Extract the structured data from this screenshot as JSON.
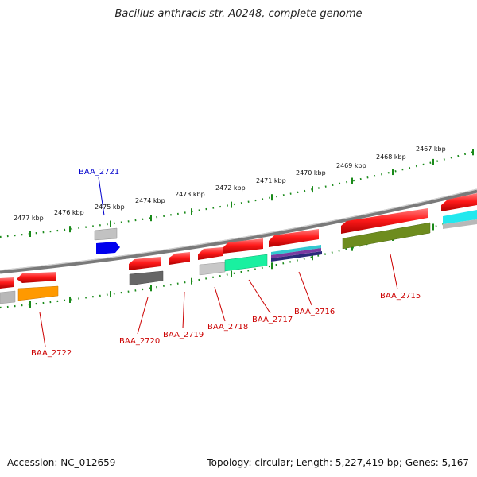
{
  "title": "Bacillus anthracis str. A0248, complete genome",
  "footer": {
    "accession": "Accession: NC_012659",
    "summary": "Topology: circular; Length: 5,227,419 bp; Genes: 5,167"
  },
  "colors": {
    "backbone": "#8a8a8a",
    "tick": "#1a8a1a",
    "label_default": "#cc0000",
    "label_highlight": "#0000cc"
  },
  "kbp_labels": [
    "2477 kbp",
    "2476 kbp",
    "2475 kbp",
    "2474 kbp",
    "2473 kbp",
    "2472 kbp",
    "2471 kbp",
    "2470 kbp",
    "2469 kbp",
    "2468 kbp",
    "2467 kbp"
  ],
  "gene_labels": [
    {
      "text": "BAA_2722",
      "color": "#cc0000"
    },
    {
      "text": "BAA_2721",
      "color": "#0000cc"
    },
    {
      "text": "BAA_2720",
      "color": "#cc0000"
    },
    {
      "text": "BAA_2719",
      "color": "#cc0000"
    },
    {
      "text": "BAA_2718",
      "color": "#cc0000"
    },
    {
      "text": "BAA_2717",
      "color": "#cc0000"
    },
    {
      "text": "BAA_2716",
      "color": "#cc0000"
    },
    {
      "text": "BAA_2715",
      "color": "#cc0000"
    }
  ],
  "features": [
    {
      "name": "gene-red-0",
      "color": "#ff1a1a"
    },
    {
      "name": "gene-red-1",
      "color": "#ff1a1a"
    },
    {
      "name": "cds-grey-0",
      "color": "#b8b8b8"
    },
    {
      "name": "cds-orange",
      "color": "#ff9900"
    },
    {
      "name": "cds-grey-2721",
      "color": "#b8b8b8"
    },
    {
      "name": "cds-blue-2721",
      "color": "#0000ee"
    },
    {
      "name": "gene-red-2720",
      "color": "#ff1a1a"
    },
    {
      "name": "cds-darkgrey-2720",
      "color": "#666666"
    },
    {
      "name": "gene-red-2719",
      "color": "#ff1a1a"
    },
    {
      "name": "gene-red-2718",
      "color": "#ff1a1a"
    },
    {
      "name": "cds-grey-2718",
      "color": "#b8b8b8"
    },
    {
      "name": "gene-red-2717",
      "color": "#ff1a1a"
    },
    {
      "name": "cds-green-2717",
      "color": "#19f0a0"
    },
    {
      "name": "gene-red-2716",
      "color": "#ff1a1a"
    },
    {
      "name": "cds-multi-2716",
      "color": "#40c0c0"
    },
    {
      "name": "gene-red-2715",
      "color": "#ff1a1a"
    },
    {
      "name": "cds-olive-2715",
      "color": "#6e8c1e"
    },
    {
      "name": "gene-red-right",
      "color": "#ff1a1a"
    },
    {
      "name": "cds-cyan-right",
      "color": "#22e8ee"
    }
  ]
}
